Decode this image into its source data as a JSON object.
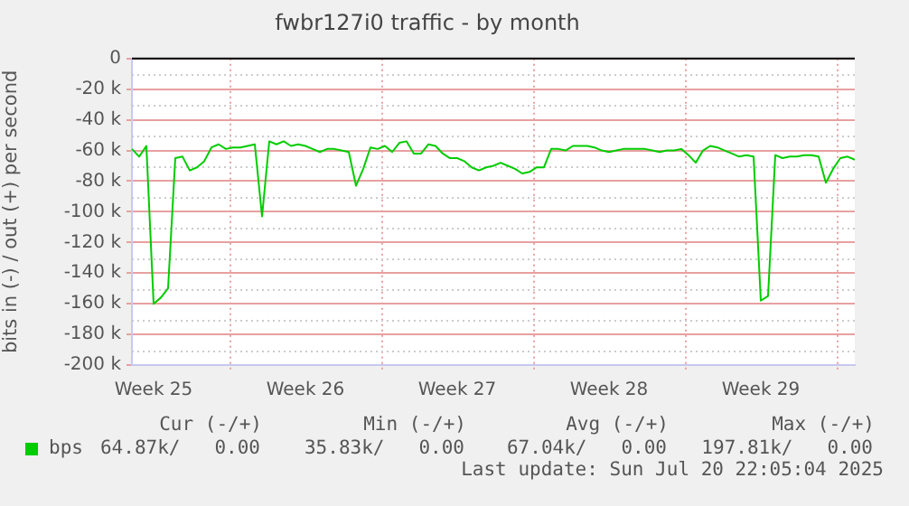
{
  "chart_data": {
    "type": "line",
    "title": "fwbr127i0 traffic - by month",
    "ylabel": "bits in (-) / out (+) per second",
    "categories": [
      null,
      null,
      null,
      "Week 25",
      null,
      null,
      null,
      null,
      null,
      null,
      null,
      null,
      null,
      null,
      null,
      null,
      null,
      null,
      null,
      null,
      null,
      null,
      null,
      null,
      "Week 26",
      null,
      null,
      null,
      null,
      null,
      null,
      null,
      null,
      null,
      null,
      null,
      null,
      null,
      null,
      null,
      null,
      null,
      null,
      null,
      null,
      "Week 27",
      null,
      null,
      null,
      null,
      null,
      null,
      null,
      null,
      null,
      null,
      null,
      null,
      null,
      null,
      null,
      null,
      null,
      null,
      null,
      null,
      "Week 28",
      null,
      null,
      null,
      null,
      null,
      null,
      null,
      null,
      null,
      null,
      null,
      null,
      null,
      null,
      null,
      null,
      null,
      null,
      null,
      null,
      "Week 29",
      null,
      null,
      null,
      null,
      null,
      null,
      null,
      null,
      null,
      null,
      null,
      null,
      null
    ],
    "series": [
      {
        "name": "bps",
        "color": "#00cc00",
        "values": [
          -59000,
          -64000,
          -57000,
          -160000,
          -156000,
          -150000,
          -65000,
          -64000,
          -73000,
          -71000,
          -67000,
          -58000,
          -56000,
          -59000,
          -58000,
          -58000,
          -57000,
          -56000,
          -103000,
          -54000,
          -56000,
          -54000,
          -57000,
          -56000,
          -57000,
          -59000,
          -61000,
          -59000,
          -59000,
          -60000,
          -61000,
          -83000,
          -72000,
          -58000,
          -59000,
          -57000,
          -61000,
          -55000,
          -54000,
          -62000,
          -62000,
          -56000,
          -57000,
          -62000,
          -65000,
          -65000,
          -67000,
          -71000,
          -73000,
          -71000,
          -70000,
          -68000,
          -70000,
          -72000,
          -75000,
          -74000,
          -71000,
          -71000,
          -59000,
          -59000,
          -60000,
          -57000,
          -57000,
          -57000,
          -58000,
          -60000,
          -61000,
          -60000,
          -59000,
          -59000,
          -59000,
          -59000,
          -60000,
          -61000,
          -60000,
          -60000,
          -59000,
          -63000,
          -68000,
          -60000,
          -57000,
          -58000,
          -60000,
          -62000,
          -64000,
          -63000,
          -64000,
          -158000,
          -155000,
          -63000,
          -65000,
          -64000,
          -64000,
          -63000,
          -63000,
          -64000,
          -81000,
          -72000,
          -65000,
          -64000,
          -66000
        ]
      }
    ],
    "ylim": [
      -200000,
      0
    ],
    "yticks": [
      {
        "value": -200000,
        "label": "-200 k"
      },
      {
        "value": -180000,
        "label": "-180 k"
      },
      {
        "value": -160000,
        "label": "-160 k"
      },
      {
        "value": -140000,
        "label": "-140 k"
      },
      {
        "value": -120000,
        "label": "-120 k"
      },
      {
        "value": -100000,
        "label": "-100 k"
      },
      {
        "value": -80000,
        "label": "-80 k"
      },
      {
        "value": -60000,
        "label": "-60 k"
      },
      {
        "value": -40000,
        "label": "-40 k"
      },
      {
        "value": -20000,
        "label": "-20 k"
      },
      {
        "value": 0,
        "label": "0"
      }
    ],
    "ref_lines": [
      {
        "axis": "y",
        "value": 0,
        "color": "#000000"
      }
    ],
    "grid": true,
    "legend": "bottom left",
    "marker": "none",
    "line_style": "solid",
    "annotations": [
      "Cur (-/+)",
      "Min (-/+)",
      "Avg (-/+)",
      "Max (-/+)",
      "64.87k/   0.00",
      "35.83k/   0.00",
      "67.04k/   0.00",
      "197.81k/   0.00",
      "Last update: Sun Jul 20 22:05:04 2025"
    ]
  }
}
